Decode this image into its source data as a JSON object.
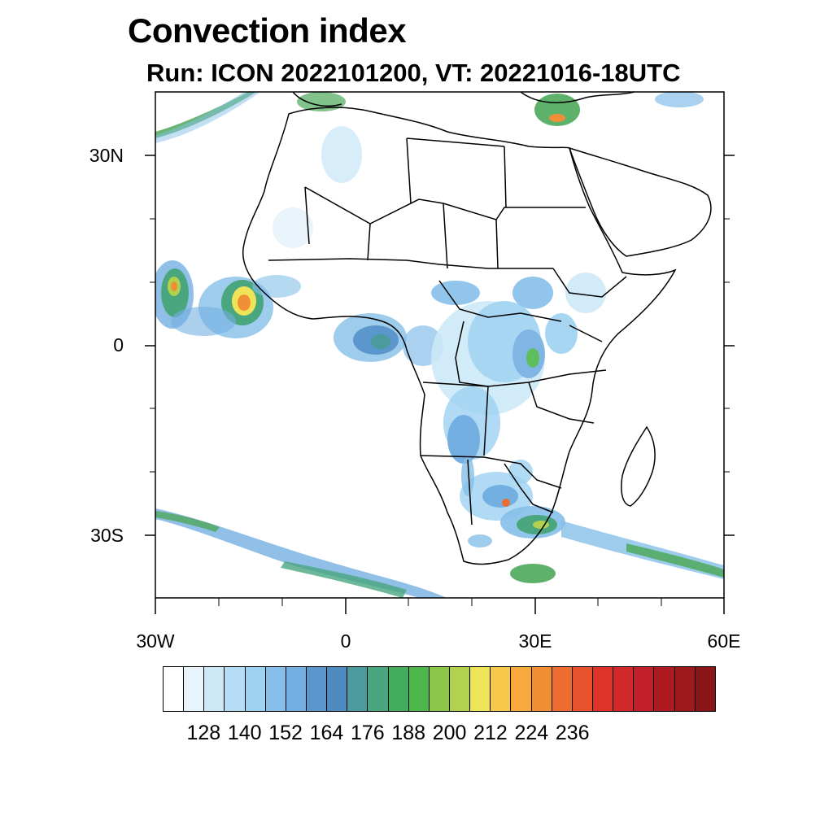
{
  "title": "Convection index",
  "subtitle": "Run: ICON 2022101200,  VT: 20221016-18UTC",
  "axes": {
    "lat_labels": [
      "30N",
      "0",
      "30S"
    ],
    "lon_labels": [
      "30W",
      "0",
      "30E",
      "60E"
    ]
  },
  "colorbar": {
    "colors": [
      "#ffffff",
      "#e8f4fb",
      "#cde9f8",
      "#b5ddf5",
      "#9ed2f2",
      "#86bfe9",
      "#74afe2",
      "#5b96cc",
      "#4d8bc0",
      "#4a9a9e",
      "#49a67e",
      "#43ad5d",
      "#4db84a",
      "#8cc648",
      "#b2d24f",
      "#eee45a",
      "#f7c94a",
      "#f7a93d",
      "#f18f36",
      "#ec6d2f",
      "#e5522b",
      "#de3329",
      "#d22a2a",
      "#c11f2a",
      "#ad1a22",
      "#9d1a1c",
      "#8b1617"
    ],
    "tick_labels": [
      "128",
      "140",
      "152",
      "164",
      "176",
      "188",
      "200",
      "212",
      "224",
      "236"
    ]
  }
}
